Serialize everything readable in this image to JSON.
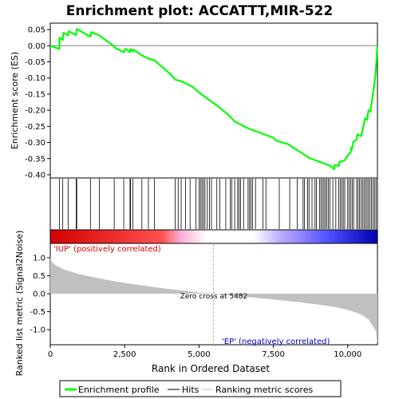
{
  "chart_data": {
    "type": "line",
    "title": "Enrichment plot: ACCATTT,MIR-522",
    "xlabel": "Rank in Ordered Dataset",
    "ylabel_top": "Enrichment score (ES)",
    "ylabel_bottom": "Ranked list metric (Signal2Noise)",
    "x_range": [
      0,
      11000
    ],
    "x_ticks": [
      {
        "value": 0,
        "label": "0"
      },
      {
        "value": 2500,
        "label": "2,500"
      },
      {
        "value": 5000,
        "label": "5,000"
      },
      {
        "value": 7500,
        "label": "7,500"
      },
      {
        "value": 10000,
        "label": "10,000"
      }
    ],
    "es_ylim": [
      -0.41,
      0.07
    ],
    "es_ticks": [
      {
        "value": 0.05,
        "label": "0.05"
      },
      {
        "value": 0.0,
        "label": "0.00"
      },
      {
        "value": -0.05,
        "label": "-0.05"
      },
      {
        "value": -0.1,
        "label": "-0.10"
      },
      {
        "value": -0.15,
        "label": "-0.15"
      },
      {
        "value": -0.2,
        "label": "-0.20"
      },
      {
        "value": -0.25,
        "label": "-0.25"
      },
      {
        "value": -0.3,
        "label": "-0.30"
      },
      {
        "value": -0.35,
        "label": "-0.35"
      },
      {
        "value": -0.4,
        "label": "-0.40"
      }
    ],
    "metric_ylim": [
      -1.42,
      1.4
    ],
    "metric_ticks": [
      {
        "value": 1.0,
        "label": "1.0"
      },
      {
        "value": 0.5,
        "label": "0.5"
      },
      {
        "value": 0.0,
        "label": "0.0"
      },
      {
        "value": -0.5,
        "label": "-0.5"
      },
      {
        "value": -1.0,
        "label": "-1.0"
      }
    ],
    "es_curve": {
      "name": "Enrichment profile",
      "color": "#00ff00",
      "points": [
        [
          0,
          0.0
        ],
        [
          300,
          -0.01
        ],
        [
          310,
          0.025
        ],
        [
          420,
          0.018
        ],
        [
          440,
          0.04
        ],
        [
          600,
          0.032
        ],
        [
          620,
          0.045
        ],
        [
          870,
          0.033
        ],
        [
          890,
          0.052
        ],
        [
          1350,
          0.028
        ],
        [
          1380,
          0.042
        ],
        [
          1650,
          0.032
        ],
        [
          2150,
          -0.002
        ],
        [
          2200,
          -0.008
        ],
        [
          2470,
          -0.02
        ],
        [
          2520,
          -0.01
        ],
        [
          2680,
          -0.02
        ],
        [
          2700,
          -0.01
        ],
        [
          2780,
          -0.018
        ],
        [
          2800,
          -0.012
        ],
        [
          3080,
          -0.03
        ],
        [
          3300,
          -0.04
        ],
        [
          3500,
          -0.045
        ],
        [
          4000,
          -0.085
        ],
        [
          4200,
          -0.105
        ],
        [
          4400,
          -0.11
        ],
        [
          4800,
          -0.128
        ],
        [
          5000,
          -0.145
        ],
        [
          5300,
          -0.165
        ],
        [
          5600,
          -0.185
        ],
        [
          6000,
          -0.215
        ],
        [
          6200,
          -0.235
        ],
        [
          6700,
          -0.258
        ],
        [
          7000,
          -0.268
        ],
        [
          7200,
          -0.275
        ],
        [
          7500,
          -0.285
        ],
        [
          7600,
          -0.295
        ],
        [
          8000,
          -0.305
        ],
        [
          8200,
          -0.318
        ],
        [
          8500,
          -0.335
        ],
        [
          8700,
          -0.348
        ],
        [
          9000,
          -0.358
        ],
        [
          9200,
          -0.365
        ],
        [
          9400,
          -0.372
        ],
        [
          9550,
          -0.383
        ],
        [
          9560,
          -0.37
        ],
        [
          9700,
          -0.373
        ],
        [
          9720,
          -0.36
        ],
        [
          9900,
          -0.355
        ],
        [
          10000,
          -0.34
        ],
        [
          10100,
          -0.33
        ],
        [
          10120,
          -0.315
        ],
        [
          10150,
          -0.32
        ],
        [
          10180,
          -0.3
        ],
        [
          10300,
          -0.29
        ],
        [
          10320,
          -0.275
        ],
        [
          10450,
          -0.28
        ],
        [
          10500,
          -0.26
        ],
        [
          10550,
          -0.24
        ],
        [
          10580,
          -0.225
        ],
        [
          10650,
          -0.23
        ],
        [
          10700,
          -0.2
        ],
        [
          10760,
          -0.205
        ],
        [
          10800,
          -0.18
        ],
        [
          10830,
          -0.16
        ],
        [
          10870,
          -0.135
        ],
        [
          10900,
          -0.115
        ],
        [
          10930,
          -0.09
        ],
        [
          10950,
          -0.07
        ],
        [
          10970,
          -0.04
        ],
        [
          10990,
          -0.01
        ],
        [
          11000,
          0.0
        ]
      ]
    },
    "hits": [
      310,
      420,
      600,
      870,
      890,
      1350,
      1650,
      2150,
      2470,
      2680,
      2700,
      2780,
      3080,
      3300,
      3500,
      4200,
      4300,
      4400,
      4550,
      4700,
      4900,
      5000,
      5050,
      5100,
      5150,
      5200,
      5280,
      5350,
      5420,
      5600,
      5700,
      5900,
      6050,
      6100,
      6200,
      6300,
      6350,
      6400,
      6500,
      6650,
      6700,
      6750,
      6800,
      6900,
      7150,
      7250,
      7700,
      8050,
      8300,
      8500,
      8550,
      8650,
      8700,
      8800,
      8900,
      8950,
      9050,
      9100,
      9150,
      9200,
      9250,
      9300,
      9350,
      9400,
      9500,
      9600,
      9700,
      9750,
      9800,
      9850,
      9900,
      10000,
      10050,
      10100,
      10150,
      10200,
      10300,
      10350,
      10400,
      10450,
      10500,
      10550,
      10600,
      10650,
      10700,
      10750,
      10800,
      10850,
      10900,
      10950
    ],
    "metric_curve": {
      "name": "Ranking metric scores",
      "color": "#c0c0c0",
      "points": [
        [
          0,
          1.02
        ],
        [
          50,
          0.88
        ],
        [
          200,
          0.78
        ],
        [
          500,
          0.66
        ],
        [
          1000,
          0.54
        ],
        [
          1500,
          0.45
        ],
        [
          2000,
          0.37
        ],
        [
          2500,
          0.3
        ],
        [
          3000,
          0.24
        ],
        [
          3500,
          0.18
        ],
        [
          4000,
          0.13
        ],
        [
          4500,
          0.08
        ],
        [
          5000,
          0.03
        ],
        [
          5482,
          0.0
        ],
        [
          6000,
          -0.04
        ],
        [
          6500,
          -0.08
        ],
        [
          7000,
          -0.12
        ],
        [
          7500,
          -0.16
        ],
        [
          8000,
          -0.2
        ],
        [
          8500,
          -0.25
        ],
        [
          9000,
          -0.3
        ],
        [
          9500,
          -0.36
        ],
        [
          10000,
          -0.45
        ],
        [
          10300,
          -0.53
        ],
        [
          10500,
          -0.6
        ],
        [
          10700,
          -0.72
        ],
        [
          10850,
          -0.9
        ],
        [
          10950,
          -1.05
        ],
        [
          11000,
          -1.4
        ]
      ]
    },
    "zero_cross": 5482,
    "annotations": {
      "zero_cross_label": "Zero cross at 5482",
      "positive_label": "'IUP' (positively correlated)",
      "negative_label": "'EP' (negatively correlated)"
    },
    "colors": {
      "positive": "#d40000",
      "negative": "#0000c8",
      "neutral": "#ffffff",
      "zero_cross_line": "#b0b0b0"
    },
    "legend": {
      "placement": "bottom",
      "entries": [
        {
          "label": "Enrichment profile",
          "color": "#00ff00"
        },
        {
          "label": "Hits",
          "color": "#000000"
        },
        {
          "label": "Ranking metric scores",
          "color": "#c0c0c0"
        }
      ]
    }
  }
}
